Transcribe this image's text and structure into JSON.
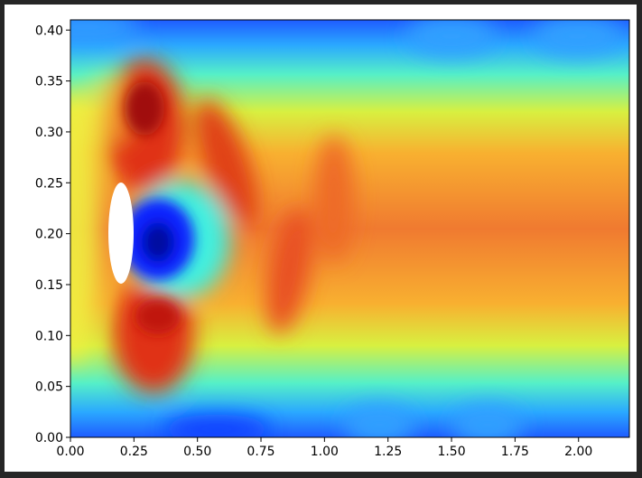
{
  "chart_data": {
    "type": "contour",
    "xlim": [
      0,
      2.2
    ],
    "ylim": [
      0,
      0.41
    ],
    "xticks": [
      {
        "value": 0,
        "label": "0.00"
      },
      {
        "value": 0.25,
        "label": "0.25"
      },
      {
        "value": 0.5,
        "label": "0.50"
      },
      {
        "value": 0.75,
        "label": "0.75"
      },
      {
        "value": 1,
        "label": "1.00"
      },
      {
        "value": 1.25,
        "label": "1.25"
      },
      {
        "value": 1.5,
        "label": "1.50"
      },
      {
        "value": 1.75,
        "label": "1.75"
      },
      {
        "value": 2,
        "label": "2.00"
      }
    ],
    "yticks": [
      {
        "value": 0,
        "label": "0.00"
      },
      {
        "value": 0.05,
        "label": "0.05"
      },
      {
        "value": 0.1,
        "label": "0.10"
      },
      {
        "value": 0.15,
        "label": "0.15"
      },
      {
        "value": 0.2,
        "label": "0.20"
      },
      {
        "value": 0.25,
        "label": "0.25"
      },
      {
        "value": 0.3,
        "label": "0.30"
      },
      {
        "value": 0.35,
        "label": "0.35"
      },
      {
        "value": 0.4,
        "label": "0.40"
      }
    ]
  }
}
